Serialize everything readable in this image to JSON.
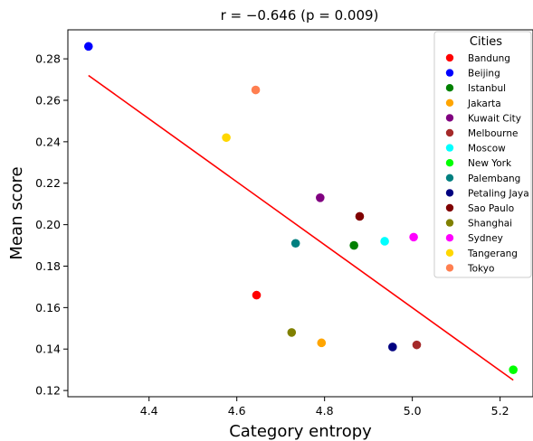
{
  "chart_data": {
    "type": "scatter",
    "title": "r = −0.646 (p = 0.009)",
    "xlabel": "Category entropy",
    "ylabel": "Mean score",
    "xlim": [
      4.215,
      5.275
    ],
    "ylim": [
      0.117,
      0.294
    ],
    "xticks": [
      4.4,
      4.6,
      4.8,
      5.0,
      5.2
    ],
    "yticks": [
      0.12,
      0.14,
      0.16,
      0.18,
      0.2,
      0.22,
      0.24,
      0.26,
      0.28
    ],
    "grid": false,
    "legend": {
      "title": "Cities",
      "placement": "top-right"
    },
    "points": [
      {
        "name": "Bandung",
        "x": 4.645,
        "y": 0.166,
        "color": "#ff0000"
      },
      {
        "name": "Beijing",
        "x": 4.262,
        "y": 0.286,
        "color": "#0000ff"
      },
      {
        "name": "Istanbul",
        "x": 4.867,
        "y": 0.19,
        "color": "#008000"
      },
      {
        "name": "Jakarta",
        "x": 4.793,
        "y": 0.143,
        "color": "#ffa500"
      },
      {
        "name": "Kuwait City",
        "x": 4.79,
        "y": 0.213,
        "color": "#800080"
      },
      {
        "name": "Melbourne",
        "x": 5.01,
        "y": 0.142,
        "color": "#a52a2a"
      },
      {
        "name": "Moscow",
        "x": 4.937,
        "y": 0.192,
        "color": "#00ffff"
      },
      {
        "name": "New York",
        "x": 5.23,
        "y": 0.13,
        "color": "#00ff00"
      },
      {
        "name": "Palembang",
        "x": 4.734,
        "y": 0.191,
        "color": "#008080"
      },
      {
        "name": "Petaling Jaya",
        "x": 4.955,
        "y": 0.141,
        "color": "#000080"
      },
      {
        "name": "Sao Paulo",
        "x": 4.88,
        "y": 0.204,
        "color": "#800000"
      },
      {
        "name": "Shanghai",
        "x": 4.725,
        "y": 0.148,
        "color": "#808000"
      },
      {
        "name": "Sydney",
        "x": 5.003,
        "y": 0.194,
        "color": "#ff00ff"
      },
      {
        "name": "Tangerang",
        "x": 4.576,
        "y": 0.242,
        "color": "#ffd700"
      },
      {
        "name": "Tokyo",
        "x": 4.643,
        "y": 0.265,
        "color": "#ff7f50"
      }
    ],
    "fit_line": {
      "x": [
        4.262,
        5.23
      ],
      "y": [
        0.272,
        0.125
      ],
      "color": "#ff0000"
    }
  }
}
